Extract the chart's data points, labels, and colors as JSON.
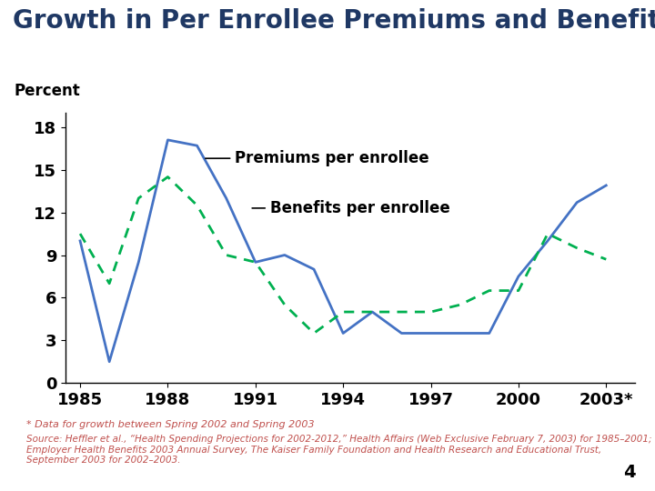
{
  "title": "Growth in Per Enrollee Premiums and Benefits",
  "ylabel": "Percent",
  "title_color": "#1F3864",
  "title_fontsize": 20,
  "background_color": "#FFFFFF",
  "header_bar_color1": "#1F3864",
  "header_bar_color2": "#C0504D",
  "footnote1": "* Data for growth between Spring 2002 and Spring 2003",
  "footnote2": "Source: Heffler et al., “Health Spending Projections for 2002-2012,” Health Affairs (Web Exclusive February 7, 2003) for 1985–2001; Employer Health Benefits 2003 Annual Survey, The Kaiser Family Foundation and Health Research and Educational Trust, September 2003 for 2002–2003.",
  "footnote_color": "#C0504D",
  "page_num": "4",
  "xtick_labels": [
    "1985",
    "1988",
    "1991",
    "1994",
    "1997",
    "2000",
    "2003*"
  ],
  "xtick_positions": [
    1985,
    1988,
    1991,
    1994,
    1997,
    2000,
    2003
  ],
  "ylim": [
    0,
    19
  ],
  "ytick_positions": [
    0,
    3,
    6,
    9,
    12,
    15,
    18
  ],
  "premiums_years": [
    1985,
    1986,
    1987,
    1988,
    1989,
    1990,
    1991,
    1992,
    1993,
    1994,
    1995,
    1996,
    1997,
    1998,
    1999,
    2000,
    2001,
    2002,
    2003
  ],
  "premiums_values": [
    10.0,
    1.5,
    8.5,
    17.1,
    16.7,
    13.0,
    8.5,
    9.0,
    8.0,
    3.5,
    5.0,
    3.5,
    3.5,
    3.5,
    3.5,
    7.5,
    10.0,
    12.7,
    13.9
  ],
  "benefits_years": [
    1985,
    1986,
    1987,
    1988,
    1989,
    1990,
    1991,
    1992,
    1993,
    1994,
    1995,
    1996,
    1997,
    1998,
    1999,
    2000,
    2001,
    2002,
    2003
  ],
  "benefits_values": [
    10.5,
    7.0,
    13.0,
    14.5,
    12.5,
    9.0,
    8.5,
    5.5,
    3.5,
    5.0,
    5.0,
    5.0,
    5.0,
    5.5,
    6.5,
    6.5,
    10.5,
    9.5,
    8.7
  ],
  "premiums_color": "#4472C4",
  "benefits_color": "#00B050",
  "premiums_label": "Premiums per enrollee",
  "benefits_label": "Benefits per enrollee",
  "label_fontsize": 12,
  "tick_fontsize": 13
}
